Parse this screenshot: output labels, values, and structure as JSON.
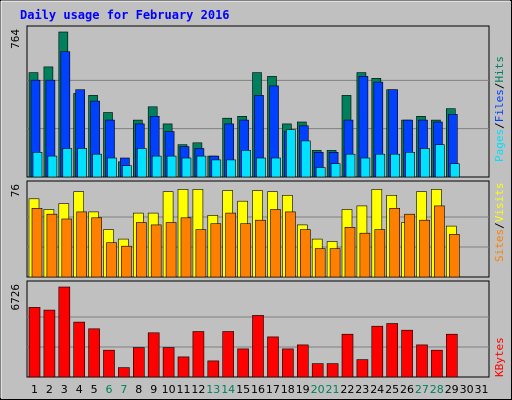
{
  "window": {
    "title": "Daily usage for February 2016"
  },
  "colors": {
    "hits": "#00805c",
    "files": "#0040ff",
    "pages": "#00e0ff",
    "visits": "#ffff00",
    "sites": "#ff8000",
    "kbytes": "#ff0000",
    "weekday_label": "#000000",
    "weekend_label": "#00805c",
    "plot_bg": "#c0c0c0",
    "grid": "#808080"
  },
  "chart_data": [
    {
      "type": "bar",
      "title": "Daily usage for February 2016",
      "x": [
        1,
        2,
        3,
        4,
        5,
        6,
        7,
        8,
        9,
        10,
        11,
        12,
        13,
        14,
        15,
        16,
        17,
        18,
        19,
        20,
        21,
        22,
        23,
        24,
        25,
        26,
        27,
        28,
        29,
        30,
        31
      ],
      "weekend_days": [
        6,
        7,
        13,
        14,
        20,
        21,
        27,
        28
      ],
      "ymax_label": "764",
      "ylim": [
        0,
        764
      ],
      "legend": [
        "Pages",
        "Files",
        "Hits"
      ],
      "legend_separator": "/",
      "series": [
        {
          "name": "Hits",
          "values": [
            550,
            580,
            764,
            440,
            430,
            340,
            80,
            300,
            370,
            280,
            170,
            180,
            110,
            310,
            320,
            550,
            530,
            280,
            290,
            140,
            140,
            430,
            550,
            520,
            460,
            300,
            320,
            300,
            360,
            0,
            0
          ]
        },
        {
          "name": "Files",
          "values": [
            510,
            510,
            660,
            460,
            400,
            300,
            100,
            280,
            320,
            240,
            160,
            150,
            110,
            280,
            300,
            430,
            480,
            240,
            270,
            130,
            130,
            300,
            530,
            500,
            460,
            300,
            300,
            290,
            330,
            0,
            0
          ]
        },
        {
          "name": "Pages",
          "values": [
            130,
            110,
            150,
            150,
            120,
            100,
            60,
            150,
            110,
            110,
            100,
            110,
            90,
            90,
            140,
            100,
            100,
            250,
            190,
            50,
            70,
            120,
            100,
            120,
            120,
            130,
            150,
            170,
            70,
            0,
            0
          ]
        }
      ]
    },
    {
      "type": "bar",
      "x": [
        1,
        2,
        3,
        4,
        5,
        6,
        7,
        8,
        9,
        10,
        11,
        12,
        13,
        14,
        15,
        16,
        17,
        18,
        19,
        20,
        21,
        22,
        23,
        24,
        25,
        26,
        27,
        28,
        29,
        30,
        31
      ],
      "ymax_label": "76",
      "ylim": [
        0,
        76
      ],
      "legend": [
        "Sites",
        "Visits"
      ],
      "legend_separator": "/",
      "series": [
        {
          "name": "Visits",
          "values": [
            66,
            57,
            62,
            72,
            55,
            40,
            32,
            54,
            54,
            72,
            74,
            74,
            52,
            73,
            64,
            73,
            72,
            69,
            44,
            32,
            30,
            57,
            60,
            74,
            69,
            46,
            72,
            74,
            43,
            0,
            0
          ]
        },
        {
          "name": "Sites",
          "values": [
            58,
            53,
            49,
            55,
            50,
            29,
            26,
            46,
            44,
            46,
            50,
            40,
            45,
            54,
            45,
            48,
            57,
            55,
            40,
            24,
            24,
            42,
            37,
            40,
            58,
            53,
            48,
            60,
            36,
            0,
            0
          ]
        }
      ]
    },
    {
      "type": "bar",
      "x": [
        1,
        2,
        3,
        4,
        5,
        6,
        7,
        8,
        9,
        10,
        11,
        12,
        13,
        14,
        15,
        16,
        17,
        18,
        19,
        20,
        21,
        22,
        23,
        24,
        25,
        26,
        27,
        28,
        29,
        30,
        31
      ],
      "ymax_label": "6726",
      "ylim": [
        0,
        6726
      ],
      "legend": [
        "KBytes"
      ],
      "series": [
        {
          "name": "KBytes",
          "values": [
            5200,
            5000,
            6726,
            4100,
            3600,
            2000,
            700,
            2200,
            3300,
            2200,
            1500,
            3400,
            1200,
            3400,
            2100,
            4600,
            3000,
            2100,
            2400,
            1000,
            1000,
            3200,
            1300,
            3800,
            4000,
            3500,
            2400,
            2000,
            3200,
            0,
            0
          ]
        }
      ]
    }
  ]
}
